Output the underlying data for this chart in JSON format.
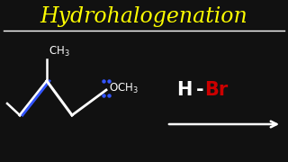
{
  "background_color": "#111111",
  "title": "Hydrohalogenation",
  "title_color": "#FFFF00",
  "title_fontsize": 17,
  "separator_color": "#FFFFFF",
  "molecule_color": "#FFFFFF",
  "double_bond_color": "#3355FF",
  "H_color": "#FFFFFF",
  "Br_color": "#CC0000",
  "arrow_color": "#FFFFFF",
  "lone_pair_color": "#3355FF",
  "figsize": [
    3.2,
    1.8
  ],
  "dpi": 100
}
